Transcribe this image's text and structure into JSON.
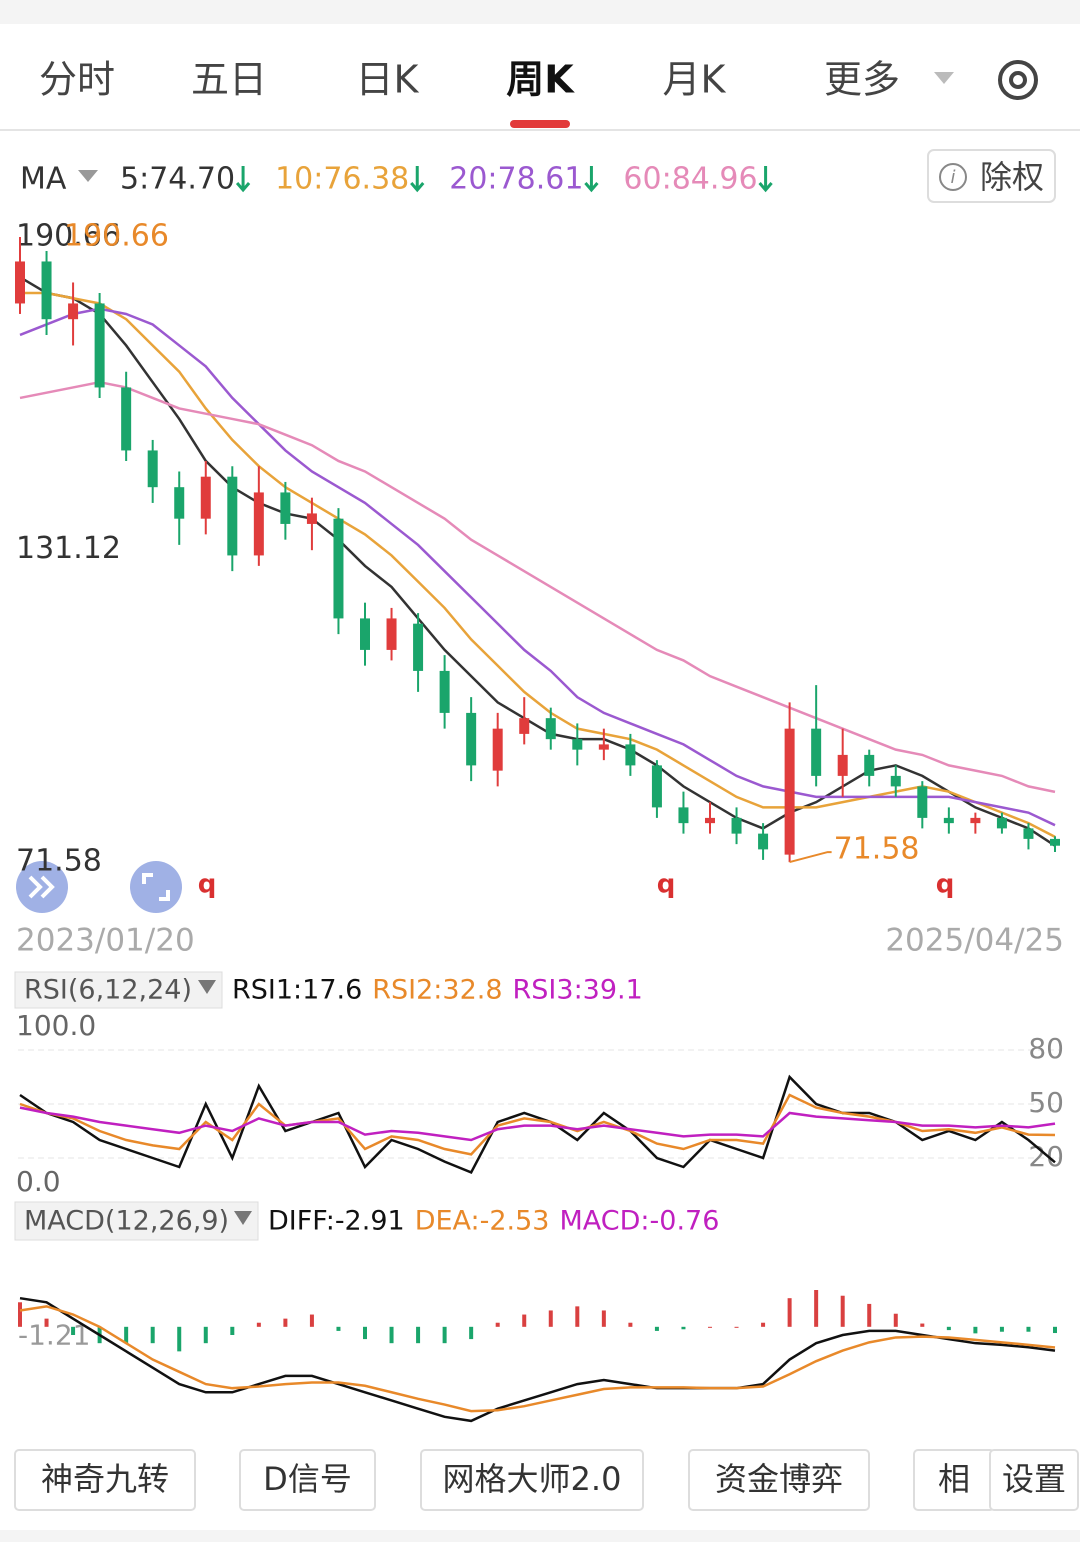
{
  "header": {
    "tabs": [
      "分时",
      "五日",
      "日K",
      "周K",
      "月K",
      "更多"
    ],
    "active_tab": 3
  },
  "ma_legend": {
    "label": "MA",
    "items": [
      "5:74.70",
      "10:76.38",
      "20:78.61",
      "60:84.96"
    ],
    "colors": [
      "#333333",
      "#e8a33a",
      "#9b59d0",
      "#e58ab8"
    ]
  },
  "adjust_button": "除权",
  "chart_data": [
    {
      "type": "candlestick",
      "categories": [
        "2023/01/20",
        null,
        null,
        null,
        null,
        null,
        null,
        null,
        null,
        null,
        null,
        null,
        null,
        null,
        null,
        null,
        null,
        null,
        null,
        null,
        null,
        null,
        null,
        null,
        null,
        null,
        null,
        null,
        null,
        null,
        null,
        null,
        null,
        null,
        null,
        null,
        null,
        null,
        null,
        "2025/04/25"
      ],
      "open": [
        178,
        186,
        175,
        178,
        162,
        150,
        143,
        137,
        145,
        130,
        142,
        136,
        137,
        118,
        112,
        117,
        108,
        100,
        89,
        96,
        99,
        95,
        93,
        94,
        90,
        82,
        79,
        80,
        77,
        73,
        97,
        88,
        92,
        88,
        86,
        80,
        79,
        80,
        78,
        76
      ],
      "high": [
        190.66,
        188,
        182,
        180,
        165,
        152,
        146,
        148,
        147,
        147,
        144,
        141,
        139,
        121,
        120,
        119,
        111,
        103,
        100,
        103,
        101,
        98,
        97,
        96,
        91,
        85,
        83,
        82,
        79,
        102,
        105.3,
        97,
        93,
        90,
        87,
        82,
        81,
        81,
        79,
        76.5
      ],
      "low": [
        176,
        172,
        170,
        160,
        148,
        140,
        132,
        134,
        127,
        128,
        133,
        131,
        115,
        109,
        110,
        104,
        97,
        87,
        86,
        94,
        93,
        90,
        91,
        88,
        80,
        77,
        77,
        75,
        72,
        71.58,
        86,
        84,
        86,
        84,
        78,
        77,
        77,
        77,
        74,
        73.5
      ],
      "close": [
        186,
        175,
        178,
        162,
        150,
        143,
        137,
        145,
        130,
        142,
        136,
        138,
        118,
        112,
        118,
        108,
        100,
        90,
        97,
        99,
        95,
        93,
        94,
        90,
        82,
        79,
        80,
        77,
        74,
        97,
        88,
        92,
        88,
        86,
        80,
        79,
        80,
        78,
        76,
        74.7
      ],
      "up_color": "#e03c3c",
      "down_color": "#1aa56b",
      "ylim": [
        61.5,
        193.9
      ],
      "yticks": [
        190.66,
        131.12,
        71.58
      ],
      "max_label": "190.66",
      "min_label": "71.58",
      "markers": [
        "q",
        "q",
        "q"
      ],
      "series": [
        {
          "color": "#333333",
          "values": [
            183,
            180,
            179,
            176,
            170,
            163,
            156,
            148,
            143,
            140,
            138,
            137,
            133,
            128,
            124,
            118,
            112,
            107,
            102,
            99,
            96,
            95,
            95,
            93,
            90,
            86,
            83,
            80,
            78,
            81,
            83,
            86,
            89,
            90,
            88,
            85,
            82,
            80,
            78,
            74.7
          ]
        },
        {
          "color": "#e8a33a",
          "values": [
            180,
            180,
            179,
            178,
            175,
            170,
            165,
            158,
            152,
            147,
            143,
            140,
            137,
            134,
            130,
            125,
            120,
            114,
            109,
            104,
            100,
            97,
            96,
            95,
            93,
            90,
            87,
            84,
            82,
            82,
            82,
            83,
            84,
            85,
            86,
            85,
            83,
            81,
            79,
            76.38
          ]
        },
        {
          "color": "#9b59d0",
          "values": [
            172,
            174,
            176,
            177,
            176,
            174,
            170,
            166,
            160,
            155,
            150,
            146,
            143,
            140,
            136,
            132,
            127,
            122,
            117,
            112,
            108,
            103,
            100,
            98,
            96,
            94,
            91,
            88,
            86,
            85,
            84,
            84,
            84,
            84,
            84,
            84,
            83,
            82,
            81,
            78.61
          ]
        },
        {
          "color": "#e58ab8",
          "values": [
            160,
            161,
            162,
            163,
            162,
            160,
            158,
            157,
            156,
            155,
            153,
            151,
            148,
            146,
            143,
            140,
            137,
            133,
            130,
            127,
            124,
            121,
            118,
            115,
            112,
            110,
            107,
            105,
            103,
            101,
            99,
            97,
            95,
            93,
            92,
            90,
            89,
            88,
            86,
            84.96
          ]
        }
      ]
    },
    {
      "type": "line",
      "indicator": "RSI(6,12,24)",
      "legend": [
        "RSI1:17.6",
        "RSI2:32.8",
        "RSI3:39.1"
      ],
      "ylim": [
        0,
        100
      ],
      "yticks": [
        {
          "value": 100,
          "label": "100.0"
        },
        80,
        50,
        20,
        {
          "value": 0,
          "label": "0.0"
        }
      ],
      "series": [
        {
          "color": "#111111",
          "values": [
            55,
            45,
            40,
            30,
            25,
            20,
            15,
            50,
            20,
            60,
            35,
            40,
            45,
            15,
            30,
            25,
            18,
            12,
            40,
            45,
            40,
            30,
            45,
            35,
            20,
            15,
            30,
            25,
            20,
            65,
            50,
            45,
            45,
            40,
            30,
            35,
            30,
            40,
            30,
            17.6
          ]
        },
        {
          "color": "#e8892a",
          "values": [
            50,
            45,
            42,
            35,
            30,
            27,
            25,
            40,
            30,
            50,
            38,
            40,
            42,
            25,
            32,
            30,
            25,
            22,
            38,
            42,
            40,
            35,
            40,
            35,
            28,
            25,
            30,
            30,
            28,
            55,
            48,
            45,
            43,
            40,
            35,
            36,
            34,
            37,
            33,
            32.8
          ]
        },
        {
          "color": "#c020c0",
          "values": [
            48,
            45,
            43,
            40,
            38,
            36,
            34,
            38,
            35,
            42,
            38,
            40,
            40,
            33,
            35,
            34,
            32,
            30,
            36,
            38,
            38,
            36,
            38,
            36,
            34,
            32,
            33,
            33,
            32,
            45,
            43,
            42,
            41,
            40,
            38,
            38,
            37,
            38,
            37,
            39.1
          ]
        }
      ]
    },
    {
      "type": "macd",
      "indicator": "MACD(12,26,9)",
      "legend": [
        "DIFF:-2.91",
        "DEA:-2.53",
        "MACD:-0.76"
      ],
      "ylim": [
        -12,
        10
      ],
      "yticks": [
        -1.21
      ],
      "series": [
        {
          "color": "#111111",
          "values": [
            3.5,
            3,
            1,
            -1,
            -3,
            -5,
            -7,
            -8,
            -8,
            -7,
            -6,
            -6,
            -7,
            -8,
            -9,
            -10,
            -11,
            -11.5,
            -10,
            -9,
            -8,
            -7,
            -6.5,
            -7,
            -7.5,
            -7.5,
            -7.5,
            -7.5,
            -7,
            -4,
            -2,
            -1,
            -0.5,
            -0.5,
            -1,
            -1.5,
            -2,
            -2.2,
            -2.5,
            -2.91
          ]
        },
        {
          "color": "#e8892a",
          "values": [
            2,
            2.5,
            1.5,
            0,
            -2,
            -4,
            -5.5,
            -7,
            -7.5,
            -7.3,
            -7,
            -6.8,
            -6.8,
            -7.2,
            -8,
            -8.8,
            -9.5,
            -10.3,
            -10.2,
            -9.7,
            -9,
            -8.3,
            -7.6,
            -7.4,
            -7.4,
            -7.4,
            -7.5,
            -7.5,
            -7.3,
            -5.8,
            -4.2,
            -2.9,
            -1.9,
            -1.3,
            -1.2,
            -1.3,
            -1.6,
            -1.9,
            -2.2,
            -2.53
          ]
        }
      ],
      "histogram": [
        3,
        1,
        -1,
        -2,
        -2,
        -2,
        -3,
        -2,
        -1,
        0.5,
        1,
        1.5,
        -0.5,
        -1.5,
        -2,
        -2,
        -2,
        -1.5,
        0.5,
        1.5,
        2,
        2.5,
        2,
        0.5,
        -0.5,
        -0.3,
        0,
        0,
        0.5,
        3.5,
        4.5,
        3.8,
        2.8,
        1.6,
        0.4,
        -0.4,
        -0.8,
        -0.6,
        -0.6,
        -0.76
      ],
      "up_color": "#d94040",
      "down_color": "#1aa56b"
    }
  ],
  "toolbar": [
    "神奇九转",
    "D信号",
    "网格大师2.0",
    "资金博弈",
    "相",
    "设置"
  ]
}
